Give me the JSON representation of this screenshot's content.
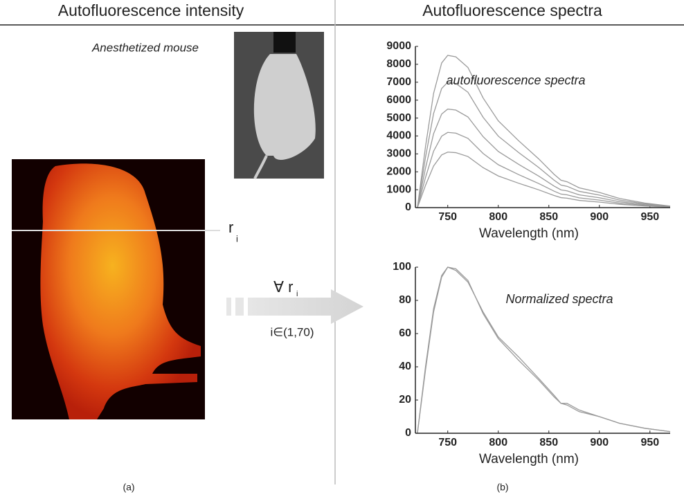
{
  "header": {
    "left": "Autofluorescence intensity",
    "right": "Autofluorescence spectra"
  },
  "photo_label": "Anesthetized mouse",
  "row_label": {
    "main": "r",
    "sub": "i"
  },
  "arrow": {
    "forall": "∀ r",
    "forall_sub": "i",
    "range": "i∈(1,70)"
  },
  "panels": [
    "(a)",
    "(b)"
  ],
  "chart_data": [
    {
      "type": "line",
      "annotation": "autofluorescence spectra",
      "xlabel": "Wavelength (nm)",
      "x": [
        720,
        728,
        736,
        744,
        750,
        758,
        770,
        785,
        800,
        820,
        840,
        855,
        862,
        868,
        880,
        900,
        920,
        945,
        970
      ],
      "xlim": [
        718,
        970
      ],
      "xticks": [
        750,
        800,
        850,
        900,
        950
      ],
      "ylim": [
        0,
        9000
      ],
      "yticks": [
        0,
        1000,
        2000,
        3000,
        4000,
        5000,
        6000,
        7000,
        8000,
        9000
      ],
      "series": [
        {
          "color": "#9a9a9a",
          "values": [
            0,
            3400,
            6375,
            8075,
            8500,
            8415,
            7820,
            6120,
            4845,
            3740,
            2720,
            1870,
            1530,
            1445,
            1105,
            850,
            510,
            255,
            85
          ]
        },
        {
          "color": "#9a9a9a",
          "values": [
            0,
            2800,
            5250,
            6650,
            7000,
            6930,
            6440,
            5040,
            3990,
            3080,
            2240,
            1540,
            1260,
            1190,
            910,
            700,
            420,
            210,
            70
          ]
        },
        {
          "color": "#9a9a9a",
          "values": [
            0,
            2200,
            4125,
            5225,
            5500,
            5445,
            5060,
            3960,
            3135,
            2420,
            1760,
            1210,
            990,
            935,
            715,
            550,
            330,
            165,
            55
          ]
        },
        {
          "color": "#9a9a9a",
          "values": [
            0,
            1680,
            3150,
            3990,
            4200,
            4158,
            3864,
            3024,
            2394,
            1848,
            1344,
            924,
            756,
            714,
            546,
            420,
            252,
            126,
            42
          ]
        },
        {
          "color": "#9a9a9a",
          "values": [
            0,
            1240,
            2325,
            2945,
            3100,
            3069,
            2852,
            2232,
            1767,
            1364,
            992,
            682,
            558,
            527,
            403,
            310,
            186,
            93,
            31
          ]
        }
      ]
    },
    {
      "type": "line",
      "annotation": "Normalized spectra",
      "xlabel": "Wavelength (nm)",
      "x": [
        720,
        728,
        736,
        744,
        750,
        758,
        770,
        785,
        800,
        820,
        840,
        855,
        862,
        868,
        880,
        900,
        920,
        945,
        970
      ],
      "xlim": [
        718,
        970
      ],
      "xticks": [
        750,
        800,
        850,
        900,
        950
      ],
      "ylim": [
        0,
        100
      ],
      "yticks": [
        0,
        20,
        40,
        60,
        80,
        100
      ],
      "series": [
        {
          "color": "#9a9a9a",
          "values": [
            0,
            40,
            75,
            95,
            100,
            99,
            92,
            72,
            57,
            44,
            32,
            22,
            18,
            17,
            13,
            10,
            6,
            3,
            1
          ]
        },
        {
          "color": "#9a9a9a",
          "values": [
            0,
            38,
            73,
            94,
            100,
            98,
            91,
            73,
            58,
            46,
            33,
            23,
            18,
            18,
            14,
            10,
            6,
            3,
            1
          ]
        }
      ]
    }
  ]
}
